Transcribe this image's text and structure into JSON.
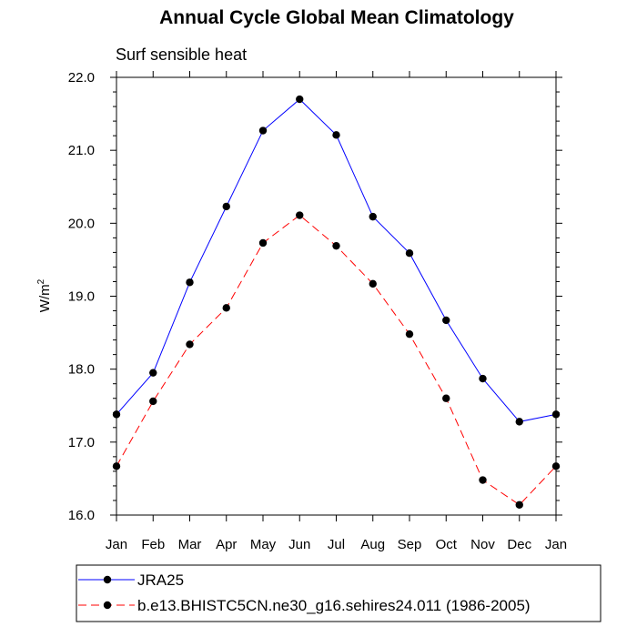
{
  "chart_data": {
    "type": "line",
    "title": "Annual Cycle Global Mean Climatology",
    "subtitle": "Surf sensible heat",
    "ylabel": "W/m",
    "ylabel_superscript": "2",
    "xlabel": "",
    "categories": [
      "Jan",
      "Feb",
      "Mar",
      "Apr",
      "May",
      "Jun",
      "Jul",
      "Aug",
      "Sep",
      "Oct",
      "Nov",
      "Dec",
      "Jan"
    ],
    "ylim": [
      16.0,
      22.0
    ],
    "yticks": [
      "16.0",
      "17.0",
      "18.0",
      "19.0",
      "20.0",
      "21.0",
      "22.0"
    ],
    "grid": false,
    "legend_position": "bottom",
    "series": [
      {
        "name": "JRA25",
        "color": "#0000ff",
        "line_style": "solid",
        "marker": "filled-circle",
        "values": [
          17.38,
          17.95,
          19.19,
          20.23,
          21.27,
          21.7,
          21.21,
          20.09,
          19.59,
          18.67,
          17.87,
          17.28,
          17.38
        ]
      },
      {
        "name": "b.e13.BHISTC5CN.ne30_g16.sehires24.011 (1986-2005)",
        "color": "#ff0000",
        "line_style": "dashed",
        "marker": "filled-circle",
        "values": [
          16.67,
          17.56,
          18.34,
          18.84,
          19.73,
          20.11,
          19.69,
          19.17,
          18.48,
          17.6,
          16.48,
          16.14,
          16.67
        ]
      }
    ]
  }
}
